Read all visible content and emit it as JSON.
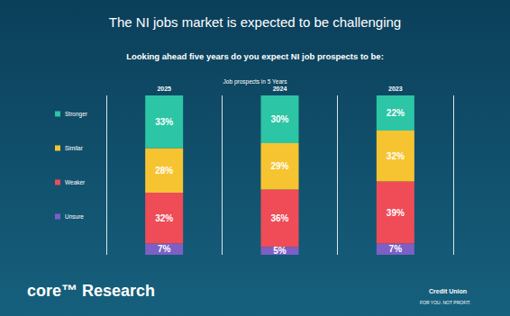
{
  "chart_data": {
    "type": "bar",
    "title": "The NI jobs market is expected to be challenging",
    "subtitle": "Looking ahead five years do you expect NI job prospects to be:",
    "axis_title": "Job prospects in 5 Years",
    "categories": [
      "2025",
      "2024",
      "2023"
    ],
    "series": [
      {
        "name": "Stronger",
        "color": "#2cc5a5",
        "values": [
          33,
          30,
          22
        ],
        "value_labels": [
          "33%",
          "30%",
          "22%"
        ]
      },
      {
        "name": "Similar",
        "color": "#f7c431",
        "values": [
          28,
          29,
          32
        ],
        "value_labels": [
          "28%",
          "29%",
          "32%"
        ]
      },
      {
        "name": "Weaker",
        "color": "#ef4c57",
        "values": [
          32,
          36,
          39
        ],
        "value_labels": [
          "32%",
          "36%",
          "39%"
        ]
      },
      {
        "name": "Unsure",
        "color": "#7d5fc6",
        "values": [
          7,
          5,
          7
        ],
        "value_labels": [
          "7%",
          "5%",
          "7%"
        ]
      }
    ],
    "ylim": [
      0,
      100
    ],
    "stacked": true,
    "data_labels": true,
    "tick_labels": "x",
    "grid": true,
    "legend": "left"
  },
  "branding": {
    "left": "core™ Research",
    "right": "Credit Union",
    "tagline": "FOR YOU. NOT PROFIT."
  }
}
